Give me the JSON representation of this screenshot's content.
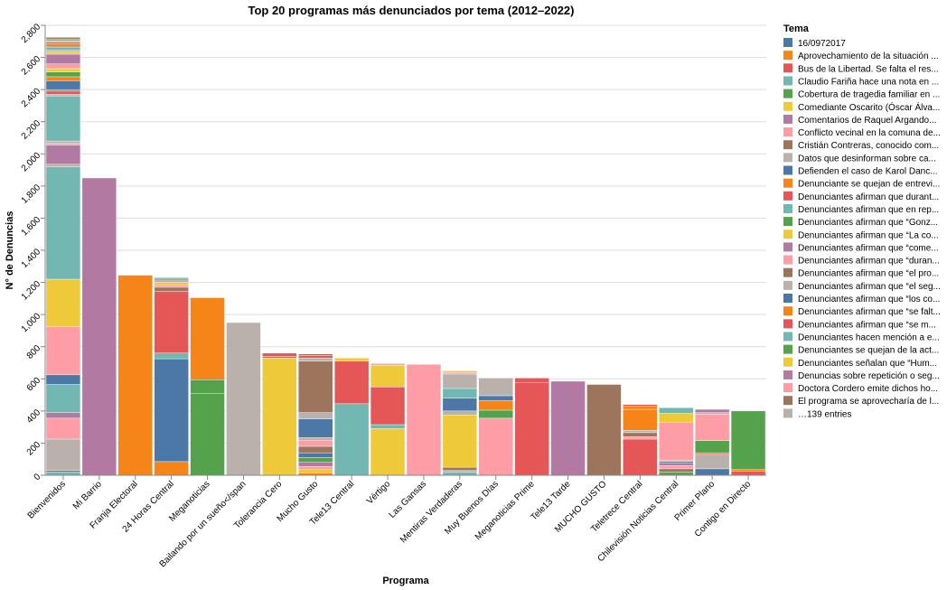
{
  "chart_data": {
    "type": "bar",
    "stacked": true,
    "title": "Top 20 programas más denunciados por tema (2012–2022)",
    "xlabel": "Programa",
    "ylabel": "N° de Denuncias",
    "ylim": [
      0,
      2800
    ],
    "yticks": [
      "0",
      "200",
      "400",
      "600",
      "800",
      "1,000",
      "1,200",
      "1,400",
      "1,600",
      "1,800",
      "2,000",
      "2,200",
      "2,400",
      "2,600",
      "2,800"
    ],
    "grid": true,
    "legend_position": "right",
    "legend_title": "Tema",
    "palette": [
      "#4c78a8",
      "#f58518",
      "#e45756",
      "#72b7b2",
      "#54a24b",
      "#eeca3b",
      "#b279a2",
      "#ff9da6",
      "#9d755d",
      "#bab0ac"
    ],
    "legend": [
      "16/0972017",
      "Aprovechamiento de la situación ...",
      "Bus de la Libertad. Se falta el res...",
      "Claudio Fariña hace una nota en ...",
      "Cobertura de tragedia familiar en ...",
      "Comediante Oscarito (Óscar Álva...",
      "Comentarios de Raquel Argando...",
      "Conflicto vecinal en la comuna de...",
      "Cristián Contreras, conocido com...",
      "Datos que desinforman sobre ca...",
      "Defienden el caso de Karol Danc...",
      "Denunciante se quejan de entrevi...",
      "Denunciantes afirman que durant...",
      "Denunciantes afirman que en rep...",
      "Denunciantes afirman que “Gonz...",
      "Denunciantes afirman que “La co...",
      "Denunciantes afirman que “come...",
      "Denunciantes afirman que “duran...",
      "Denunciantes afirman que “el pro...",
      "Denunciantes afirman que “el seg...",
      "Denunciantes afirman que “los co...",
      "Denunciantes afirman que “se falt...",
      "Denunciantes afirman que “se m...",
      "Denunciantes hacen mención a e...",
      "Denunciantes se quejan de la act...",
      "Denunciantes señalan que “Hum...",
      "Denuncias sobre repetición o seg...",
      "Doctora Cordero emite dichos ho...",
      "El programa se aprovecharía de l...",
      "…139 entries"
    ],
    "bars": [
      {
        "category": "Bienvenidos",
        "segments": [
          {
            "value": 20,
            "color": "#72b7b2"
          },
          {
            "value": 10,
            "color": "#4c78a8"
          },
          {
            "value": 195,
            "color": "#bab0ac"
          },
          {
            "value": 130,
            "color": "#ff9da6"
          },
          {
            "value": 35,
            "color": "#b279a2"
          },
          {
            "value": 175,
            "color": "#72b7b2"
          },
          {
            "value": 60,
            "color": "#4c78a8"
          },
          {
            "value": 300,
            "color": "#ff9da6"
          },
          {
            "value": 295,
            "color": "#eeca3b"
          },
          {
            "value": 700,
            "color": "#72b7b2"
          },
          {
            "value": 15,
            "color": "#bab0ac"
          },
          {
            "value": 120,
            "color": "#b279a2"
          },
          {
            "value": 10,
            "color": "#ff9da6"
          },
          {
            "value": 15,
            "color": "#bab0ac"
          },
          {
            "value": 280,
            "color": "#72b7b2"
          },
          {
            "value": 10,
            "color": "#ff9da6"
          },
          {
            "value": 20,
            "color": "#e45756"
          },
          {
            "value": 10,
            "color": "#9d755d"
          },
          {
            "value": 55,
            "color": "#4c78a8"
          },
          {
            "value": 25,
            "color": "#f58518"
          },
          {
            "value": 30,
            "color": "#54a24b"
          },
          {
            "value": 20,
            "color": "#eeca3b"
          },
          {
            "value": 30,
            "color": "#ff9da6"
          },
          {
            "value": 60,
            "color": "#b279a2"
          },
          {
            "value": 15,
            "color": "#eeca3b"
          },
          {
            "value": 10,
            "color": "#bab0ac"
          },
          {
            "value": 20,
            "color": "#72b7b2"
          },
          {
            "value": 20,
            "color": "#f58518"
          },
          {
            "value": 10,
            "color": "#e45756"
          },
          {
            "value": 10,
            "color": "#ff9da6"
          },
          {
            "value": 10,
            "color": "#54a24b"
          },
          {
            "value": 10,
            "color": "#9d755d"
          }
        ]
      },
      {
        "category": "Mi Barrio",
        "segments": [
          {
            "value": 1850,
            "color": "#b279a2"
          }
        ]
      },
      {
        "category": "Franja Electoral",
        "segments": [
          {
            "value": 1245,
            "color": "#f58518"
          }
        ]
      },
      {
        "category": "24 Horas Central",
        "segments": [
          {
            "value": 85,
            "color": "#f58518"
          },
          {
            "value": 640,
            "color": "#4c78a8"
          },
          {
            "value": 35,
            "color": "#72b7b2"
          },
          {
            "value": 385,
            "color": "#e45756"
          },
          {
            "value": 25,
            "color": "#9d755d"
          },
          {
            "value": 15,
            "color": "#ff9da6"
          },
          {
            "value": 15,
            "color": "#eeca3b"
          },
          {
            "value": 10,
            "color": "#bab0ac"
          },
          {
            "value": 10,
            "color": "#9d755d"
          },
          {
            "value": 10,
            "color": "#72b7b2"
          }
        ]
      },
      {
        "category": "Meganoticias",
        "segments": [
          {
            "value": 510,
            "color": "#54a24b"
          },
          {
            "value": 85,
            "color": "#54a24b"
          },
          {
            "value": 510,
            "color": "#f58518"
          }
        ]
      },
      {
        "category": "Bailando por un sueño</span",
        "segments": [
          {
            "value": 950,
            "color": "#bab0ac"
          }
        ]
      },
      {
        "category": "Tolerancia Cero",
        "segments": [
          {
            "value": 730,
            "color": "#eeca3b"
          },
          {
            "value": 10,
            "color": "#e45756"
          },
          {
            "value": 20,
            "color": "#e45756"
          }
        ]
      },
      {
        "category": "Mucho Gusto",
        "segments": [
          {
            "value": 15,
            "color": "#f58518"
          },
          {
            "value": 20,
            "color": "#eeca3b"
          },
          {
            "value": 20,
            "color": "#ff9da6"
          },
          {
            "value": 25,
            "color": "#b279a2"
          },
          {
            "value": 30,
            "color": "#54a24b"
          },
          {
            "value": 30,
            "color": "#4c78a8"
          },
          {
            "value": 40,
            "color": "#9d755d"
          },
          {
            "value": 35,
            "color": "#ff9da6"
          },
          {
            "value": 20,
            "color": "#bab0ac"
          },
          {
            "value": 115,
            "color": "#4c78a8"
          },
          {
            "value": 40,
            "color": "#bab0ac"
          },
          {
            "value": 320,
            "color": "#9d755d"
          },
          {
            "value": 20,
            "color": "#bab0ac"
          },
          {
            "value": 15,
            "color": "#e45756"
          },
          {
            "value": 10,
            "color": "#9d755d"
          }
        ]
      },
      {
        "category": "Tele13 Central",
        "segments": [
          {
            "value": 445,
            "color": "#72b7b2"
          },
          {
            "value": 265,
            "color": "#e45756"
          },
          {
            "value": 20,
            "color": "#eeca3b"
          }
        ]
      },
      {
        "category": "Vértigo",
        "segments": [
          {
            "value": 290,
            "color": "#eeca3b"
          },
          {
            "value": 25,
            "color": "#72b7b2"
          },
          {
            "value": 235,
            "color": "#e45756"
          },
          {
            "value": 135,
            "color": "#eeca3b"
          },
          {
            "value": 10,
            "color": "#ff9da6"
          }
        ]
      },
      {
        "category": "Las Gansas",
        "segments": [
          {
            "value": 690,
            "color": "#ff9da6"
          }
        ]
      },
      {
        "category": "Mentiras Verdaderas",
        "segments": [
          {
            "value": 20,
            "color": "#72b7b2"
          },
          {
            "value": 10,
            "color": "#bab0ac"
          },
          {
            "value": 20,
            "color": "#9d755d"
          },
          {
            "value": 325,
            "color": "#eeca3b"
          },
          {
            "value": 25,
            "color": "#bab0ac"
          },
          {
            "value": 80,
            "color": "#4c78a8"
          },
          {
            "value": 60,
            "color": "#72b7b2"
          },
          {
            "value": 90,
            "color": "#bab0ac"
          },
          {
            "value": 10,
            "color": "#ff9da6"
          },
          {
            "value": 10,
            "color": "#eeca3b"
          }
        ]
      },
      {
        "category": "Muy Buenos Días",
        "segments": [
          {
            "value": 355,
            "color": "#ff9da6"
          },
          {
            "value": 50,
            "color": "#54a24b"
          },
          {
            "value": 60,
            "color": "#f58518"
          },
          {
            "value": 30,
            "color": "#4c78a8"
          },
          {
            "value": 110,
            "color": "#bab0ac"
          }
        ]
      },
      {
        "category": "Meganoticias Prime",
        "segments": [
          {
            "value": 575,
            "color": "#e45756"
          },
          {
            "value": 30,
            "color": "#e45756"
          }
        ]
      },
      {
        "category": "Tele13 Tarde",
        "segments": [
          {
            "value": 585,
            "color": "#b279a2"
          }
        ]
      },
      {
        "category": "MUCHO GUSTO",
        "segments": [
          {
            "value": 565,
            "color": "#9d755d"
          }
        ]
      },
      {
        "category": "Teletrece Central",
        "segments": [
          {
            "value": 225,
            "color": "#e45756"
          },
          {
            "value": 15,
            "color": "#ff9da6"
          },
          {
            "value": 25,
            "color": "#9d755d"
          },
          {
            "value": 15,
            "color": "#bab0ac"
          },
          {
            "value": 130,
            "color": "#f58518"
          },
          {
            "value": 20,
            "color": "#f58518"
          },
          {
            "value": 10,
            "color": "#e45756"
          }
        ]
      },
      {
        "category": "Chilevisión Noticias Central",
        "segments": [
          {
            "value": 20,
            "color": "#54a24b"
          },
          {
            "value": 20,
            "color": "#9d755d"
          },
          {
            "value": 20,
            "color": "#ff9da6"
          },
          {
            "value": 15,
            "color": "#b279a2"
          },
          {
            "value": 10,
            "color": "#4c78a8"
          },
          {
            "value": 10,
            "color": "#bab0ac"
          },
          {
            "value": 235,
            "color": "#ff9da6"
          },
          {
            "value": 55,
            "color": "#eeca3b"
          },
          {
            "value": 35,
            "color": "#72b7b2"
          }
        ]
      },
      {
        "category": "Primer Plano",
        "segments": [
          {
            "value": 40,
            "color": "#4c78a8"
          },
          {
            "value": 90,
            "color": "#bab0ac"
          },
          {
            "value": 10,
            "color": "#e45756"
          },
          {
            "value": 75,
            "color": "#54a24b"
          },
          {
            "value": 165,
            "color": "#ff9da6"
          },
          {
            "value": 10,
            "color": "#bab0ac"
          },
          {
            "value": 20,
            "color": "#b279a2"
          }
        ]
      },
      {
        "category": "Contigo en Directo",
        "segments": [
          {
            "value": 25,
            "color": "#e45756"
          },
          {
            "value": 10,
            "color": "#f58518"
          },
          {
            "value": 365,
            "color": "#54a24b"
          }
        ]
      }
    ]
  }
}
